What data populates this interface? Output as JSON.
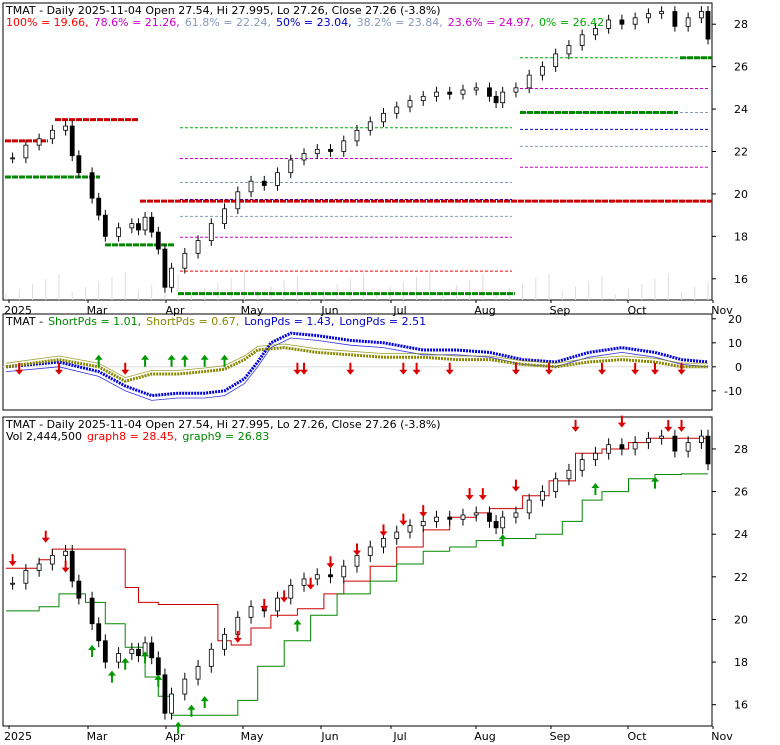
{
  "chart_data": [
    {
      "type": "line",
      "panel": "price",
      "title_parts": [
        {
          "text": "TMAT - Daily 2025-11-04 Open 27.54, Hi 27.995, Lo 27.26, Close 27.26 (-3.8%)",
          "color": "#000000"
        }
      ],
      "fib_parts": [
        {
          "text": "100% = 19.66,",
          "color": "#ff0000"
        },
        {
          "text": "78.6% = 21.26,",
          "color": "#cc00cc"
        },
        {
          "text": "61.8% = 22.24,",
          "color": "#8899bb"
        },
        {
          "text": "50% = 23.04,",
          "color": "#0000cc"
        },
        {
          "text": "38.2% = 23.84,",
          "color": "#8899bb"
        },
        {
          "text": "23.6% = 24.97,",
          "color": "#cc00cc"
        },
        {
          "text": "0% = 26.42",
          "color": "#00aa00"
        }
      ],
      "x_labels": [
        "2025",
        "Mar",
        "Apr",
        "May",
        "Jun",
        "Jul",
        "Aug",
        "Sep",
        "Oct",
        "Nov"
      ],
      "y_ticks": [
        "16",
        "18",
        "20",
        "22",
        "24",
        "26",
        "28"
      ],
      "ylim": [
        15,
        29
      ],
      "close_points": [
        [
          1,
          21.7
        ],
        [
          3,
          22.3
        ],
        [
          5,
          22.6
        ],
        [
          7,
          23.0
        ],
        [
          9,
          23.2
        ],
        [
          10,
          21.8
        ],
        [
          11,
          21.0
        ],
        [
          13,
          19.8
        ],
        [
          14,
          19.0
        ],
        [
          15,
          18.0
        ],
        [
          17,
          18.4
        ],
        [
          19,
          18.6
        ],
        [
          20,
          18.3
        ],
        [
          21,
          18.9
        ],
        [
          22,
          18.2
        ],
        [
          23,
          17.4
        ],
        [
          24,
          15.6
        ],
        [
          25,
          16.5
        ],
        [
          27,
          17.2
        ],
        [
          29,
          17.8
        ],
        [
          31,
          18.6
        ],
        [
          33,
          19.3
        ],
        [
          35,
          20.1
        ],
        [
          37,
          20.6
        ],
        [
          39,
          20.4
        ],
        [
          41,
          21.0
        ],
        [
          43,
          21.6
        ],
        [
          45,
          21.9
        ],
        [
          47,
          22.1
        ],
        [
          49,
          22.0
        ],
        [
          51,
          22.5
        ],
        [
          53,
          23.0
        ],
        [
          55,
          23.4
        ],
        [
          57,
          23.8
        ],
        [
          59,
          24.1
        ],
        [
          61,
          24.4
        ],
        [
          63,
          24.6
        ],
        [
          65,
          24.8
        ],
        [
          67,
          24.7
        ],
        [
          69,
          24.9
        ],
        [
          71,
          25.0
        ],
        [
          73,
          24.6
        ],
        [
          74,
          24.3
        ],
        [
          75,
          24.8
        ],
        [
          77,
          25.0
        ],
        [
          79,
          25.6
        ],
        [
          81,
          26.0
        ],
        [
          83,
          26.6
        ],
        [
          85,
          27.0
        ],
        [
          87,
          27.5
        ],
        [
          89,
          27.8
        ],
        [
          91,
          28.2
        ],
        [
          93,
          28.0
        ],
        [
          95,
          28.3
        ],
        [
          97,
          28.5
        ],
        [
          99,
          28.6
        ],
        [
          101,
          27.9
        ],
        [
          103,
          28.3
        ],
        [
          105,
          28.6
        ],
        [
          106,
          27.3
        ]
      ],
      "levels": [
        {
          "name": "100%",
          "value": 19.66,
          "color": "#ff0000"
        },
        {
          "name": "78.6%",
          "value": 21.26,
          "color": "#cc00cc"
        },
        {
          "name": "61.8%",
          "value": 22.24,
          "color": "#8899bb"
        },
        {
          "name": "50%",
          "value": 23.04,
          "color": "#0000cc"
        },
        {
          "name": "38.2%",
          "value": 23.84,
          "color": "#8899bb"
        },
        {
          "name": "23.6%",
          "value": 24.97,
          "color": "#cc00cc"
        },
        {
          "name": "0%",
          "value": 26.42,
          "color": "#00aa00"
        }
      ]
    },
    {
      "type": "line",
      "panel": "indicator",
      "title_parts": [
        {
          "text": "TMAT -",
          "color": "#000000"
        },
        {
          "text": "ShortPds = 1.01,",
          "color": "#008800"
        },
        {
          "text": "ShortPds = 0.67,",
          "color": "#888800"
        },
        {
          "text": "LongPds = 1.43,",
          "color": "#0000cc"
        },
        {
          "text": "LongPds = 2.51",
          "color": "#0000cc"
        }
      ],
      "y_ticks": [
        "20",
        "10",
        "0",
        "-10"
      ],
      "ylim": [
        -18,
        22
      ],
      "series": [
        {
          "color": "#0000dd",
          "values": [
            [
              0,
              0
            ],
            [
              8,
              2
            ],
            [
              14,
              -2
            ],
            [
              18,
              -8
            ],
            [
              22,
              -12
            ],
            [
              26,
              -11
            ],
            [
              30,
              -11
            ],
            [
              33,
              -10
            ],
            [
              36,
              -5
            ],
            [
              38,
              2
            ],
            [
              40,
              10
            ],
            [
              43,
              14
            ],
            [
              47,
              13
            ],
            [
              52,
              11
            ],
            [
              57,
              10
            ],
            [
              63,
              7
            ],
            [
              68,
              7
            ],
            [
              73,
              6
            ],
            [
              78,
              3
            ],
            [
              83,
              2
            ],
            [
              88,
              6
            ],
            [
              93,
              8
            ],
            [
              98,
              6
            ],
            [
              102,
              3
            ],
            [
              106,
              2
            ]
          ]
        },
        {
          "color": "#888800",
          "values": [
            [
              0,
              0
            ],
            [
              8,
              3
            ],
            [
              14,
              0
            ],
            [
              18,
              -6
            ],
            [
              22,
              -3
            ],
            [
              26,
              -3
            ],
            [
              30,
              -2
            ],
            [
              33,
              -1
            ],
            [
              36,
              3
            ],
            [
              38,
              7
            ],
            [
              42,
              8
            ],
            [
              47,
              6
            ],
            [
              52,
              5
            ],
            [
              57,
              4
            ],
            [
              63,
              4
            ],
            [
              68,
              3
            ],
            [
              73,
              3
            ],
            [
              78,
              1
            ],
            [
              83,
              0
            ],
            [
              88,
              2
            ],
            [
              93,
              3
            ],
            [
              98,
              2
            ],
            [
              102,
              0
            ],
            [
              106,
              0
            ]
          ]
        }
      ],
      "arrows": [
        {
          "x": 2,
          "dir": "down"
        },
        {
          "x": 8,
          "dir": "down"
        },
        {
          "x": 14,
          "dir": "up"
        },
        {
          "x": 18,
          "dir": "down"
        },
        {
          "x": 21,
          "dir": "up"
        },
        {
          "x": 25,
          "dir": "up"
        },
        {
          "x": 27,
          "dir": "up"
        },
        {
          "x": 30,
          "dir": "up"
        },
        {
          "x": 33,
          "dir": "up"
        },
        {
          "x": 44,
          "dir": "down"
        },
        {
          "x": 45,
          "dir": "down"
        },
        {
          "x": 52,
          "dir": "down"
        },
        {
          "x": 60,
          "dir": "down"
        },
        {
          "x": 62,
          "dir": "down"
        },
        {
          "x": 67,
          "dir": "down"
        },
        {
          "x": 77,
          "dir": "down"
        },
        {
          "x": 82,
          "dir": "down"
        },
        {
          "x": 90,
          "dir": "down"
        },
        {
          "x": 95,
          "dir": "down"
        },
        {
          "x": 98,
          "dir": "down"
        },
        {
          "x": 102,
          "dir": "down"
        }
      ]
    },
    {
      "type": "line",
      "panel": "stop",
      "title_parts": [
        {
          "text": "TMAT - Daily 2025-11-04 Open 27.54, Hi 27.995, Lo 27.26, Close 27.26 (-3.8%)",
          "color": "#000000"
        }
      ],
      "vol_parts": [
        {
          "text": "Vol 2,444,500",
          "color": "#000000"
        },
        {
          "text": "graph8 = 28.45,",
          "color": "#ff0000"
        },
        {
          "text": "graph9 = 26.83",
          "color": "#008800"
        }
      ],
      "x_labels": [
        "2025",
        "Mar",
        "Apr",
        "May",
        "Jun",
        "Jul",
        "Aug",
        "Sep",
        "Oct",
        "Nov"
      ],
      "y_ticks": [
        "16",
        "18",
        "20",
        "22",
        "24",
        "26",
        "28"
      ],
      "ylim": [
        15,
        29.5
      ],
      "series": [
        {
          "color": "#cc0000",
          "values": [
            [
              0,
              22.4
            ],
            [
              5,
              22.8
            ],
            [
              7,
              23.3
            ],
            [
              16,
              23.3
            ],
            [
              18,
              21.5
            ],
            [
              20,
              20.8
            ],
            [
              23,
              20.7
            ],
            [
              26,
              20.7
            ],
            [
              29,
              20.7
            ],
            [
              32,
              19.0
            ],
            [
              34,
              18.8
            ],
            [
              37,
              19.6
            ],
            [
              40,
              20.2
            ],
            [
              44,
              20.5
            ],
            [
              48,
              21.2
            ],
            [
              51,
              21.8
            ],
            [
              55,
              22.5
            ],
            [
              59,
              23.4
            ],
            [
              63,
              24.2
            ],
            [
              67,
              24.8
            ],
            [
              71,
              25.0
            ],
            [
              73,
              25.2
            ],
            [
              78,
              25.8
            ],
            [
              82,
              26.5
            ],
            [
              86,
              27.8
            ],
            [
              90,
              28.0
            ],
            [
              94,
              28.3
            ],
            [
              97,
              28.5
            ],
            [
              101,
              28.5
            ],
            [
              106,
              28.45
            ]
          ]
        },
        {
          "color": "#008800",
          "values": [
            [
              0,
              20.4
            ],
            [
              5,
              20.6
            ],
            [
              8,
              21.2
            ],
            [
              12,
              20.8
            ],
            [
              15,
              19.8
            ],
            [
              18,
              18.7
            ],
            [
              21,
              17.3
            ],
            [
              23,
              16.4
            ],
            [
              25,
              15.5
            ],
            [
              30,
              15.5
            ],
            [
              33,
              15.5
            ],
            [
              35,
              16.2
            ],
            [
              38,
              17.8
            ],
            [
              42,
              19.0
            ],
            [
              46,
              20.2
            ],
            [
              50,
              21.2
            ],
            [
              55,
              21.8
            ],
            [
              59,
              22.6
            ],
            [
              63,
              23.2
            ],
            [
              67,
              23.4
            ],
            [
              71,
              23.7
            ],
            [
              75,
              23.8
            ],
            [
              80,
              24.0
            ],
            [
              84,
              24.6
            ],
            [
              87,
              25.6
            ],
            [
              90,
              26.0
            ],
            [
              94,
              26.6
            ],
            [
              98,
              26.8
            ],
            [
              102,
              26.83
            ],
            [
              106,
              26.83
            ]
          ]
        }
      ],
      "arrows": [
        {
          "x": 1,
          "value": 22.5,
          "dir": "down"
        },
        {
          "x": 6,
          "value": 23.6,
          "dir": "down"
        },
        {
          "x": 9,
          "value": 22.2,
          "dir": "down"
        },
        {
          "x": 13,
          "value": 18.8,
          "dir": "up"
        },
        {
          "x": 16,
          "value": 17.6,
          "dir": "up"
        },
        {
          "x": 18,
          "value": 18.2,
          "dir": "up"
        },
        {
          "x": 21,
          "value": 18.5,
          "dir": "up"
        },
        {
          "x": 23,
          "value": 17.4,
          "dir": "up"
        },
        {
          "x": 26,
          "value": 15.2,
          "dir": "up"
        },
        {
          "x": 28,
          "value": 16.0,
          "dir": "up"
        },
        {
          "x": 30,
          "value": 16.4,
          "dir": "up"
        },
        {
          "x": 35,
          "value": 18.9,
          "dir": "down"
        },
        {
          "x": 39,
          "value": 20.4,
          "dir": "down"
        },
        {
          "x": 42,
          "value": 20.8,
          "dir": "down"
        },
        {
          "x": 44,
          "value": 20.0,
          "dir": "up"
        },
        {
          "x": 46,
          "value": 21.4,
          "dir": "down"
        },
        {
          "x": 49,
          "value": 22.4,
          "dir": "down"
        },
        {
          "x": 53,
          "value": 23.0,
          "dir": "down"
        },
        {
          "x": 57,
          "value": 23.9,
          "dir": "down"
        },
        {
          "x": 60,
          "value": 24.4,
          "dir": "down"
        },
        {
          "x": 63,
          "value": 24.8,
          "dir": "down"
        },
        {
          "x": 70,
          "value": 25.6,
          "dir": "down"
        },
        {
          "x": 72,
          "value": 25.6,
          "dir": "down"
        },
        {
          "x": 75,
          "value": 24.0,
          "dir": "up"
        },
        {
          "x": 77,
          "value": 26.0,
          "dir": "down"
        },
        {
          "x": 86,
          "value": 28.8,
          "dir": "down"
        },
        {
          "x": 89,
          "value": 26.4,
          "dir": "up"
        },
        {
          "x": 93,
          "value": 29.0,
          "dir": "down"
        },
        {
          "x": 98,
          "value": 26.7,
          "dir": "up"
        },
        {
          "x": 100,
          "value": 28.8,
          "dir": "down"
        },
        {
          "x": 102,
          "value": 28.8,
          "dir": "down"
        }
      ]
    }
  ]
}
